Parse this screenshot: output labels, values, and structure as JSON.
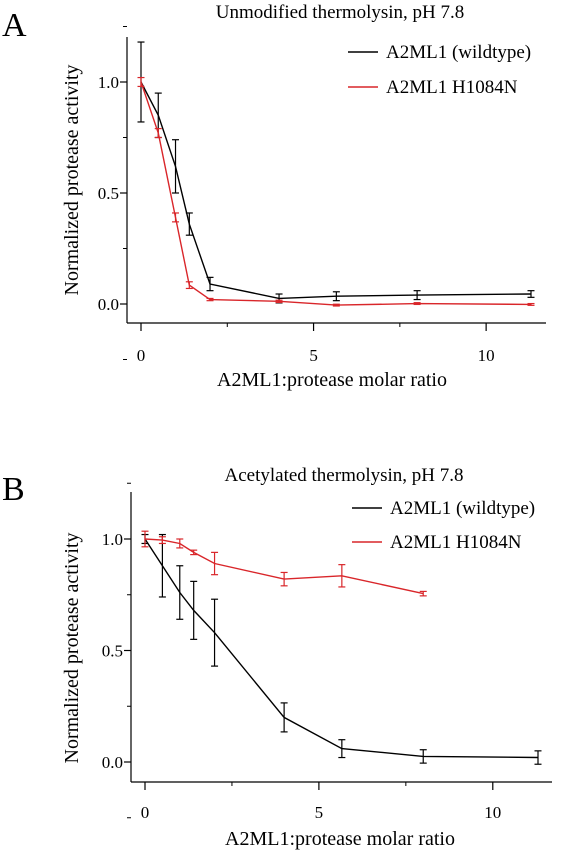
{
  "chart_data": [
    {
      "type": "line",
      "panel_label": "A",
      "title": "Unmodified thermolysin, pH 7.8",
      "xlabel": "A2ML1:protease molar ratio",
      "ylabel": "Normalized protease activity",
      "xlim": [
        -0.7,
        12.2
      ],
      "ylim": [
        -0.2,
        1.2
      ],
      "xticks": [
        0,
        5,
        10
      ],
      "yticks": [
        0.0,
        0.5,
        1.0
      ],
      "xtick_labels": [
        "0",
        "5",
        "10"
      ],
      "ytick_labels": [
        "0.0",
        "0.5",
        "1.0"
      ],
      "grid": false,
      "legend_position": "top-right",
      "series": [
        {
          "name": "A2ML1 (wildtype)",
          "color": "#000000",
          "x": [
            0,
            0.5,
            1.0,
            1.4,
            2.0,
            4.0,
            5.66,
            8.0,
            11.3
          ],
          "y": [
            1.0,
            0.85,
            0.62,
            0.36,
            0.09,
            0.025,
            0.035,
            0.04,
            0.045
          ],
          "error": [
            0.18,
            0.1,
            0.12,
            0.05,
            0.03,
            0.02,
            0.02,
            0.02,
            0.015
          ]
        },
        {
          "name": "A2ML1 H1084N",
          "color": "#d9262a",
          "x": [
            0,
            0.5,
            1.0,
            1.4,
            2.0,
            4.0,
            5.66,
            8.0,
            11.3
          ],
          "y": [
            1.0,
            0.77,
            0.39,
            0.085,
            0.02,
            0.012,
            -0.005,
            0.002,
            -0.002
          ],
          "error": [
            0.02,
            0.02,
            0.02,
            0.015,
            0.005,
            0.005,
            0.004,
            0.004,
            0.004
          ]
        }
      ]
    },
    {
      "type": "line",
      "panel_label": "B",
      "title": "Acetylated thermolysin, pH 7.8",
      "xlabel": "A2ML1:protease molar ratio",
      "ylabel": "Normalized protease activity",
      "xlim": [
        -0.7,
        12.2
      ],
      "ylim": [
        -0.2,
        1.2
      ],
      "xticks": [
        0,
        5,
        10
      ],
      "yticks": [
        0.0,
        0.5,
        1.0
      ],
      "xtick_labels": [
        "0",
        "5",
        "10"
      ],
      "ytick_labels": [
        "0.0",
        "0.5",
        "1.0"
      ],
      "grid": false,
      "legend_position": "top-right",
      "series": [
        {
          "name": "A2ML1 (wildtype)",
          "color": "#000000",
          "x": [
            0,
            0.5,
            1.0,
            1.4,
            2.0,
            4.0,
            5.66,
            8.0,
            11.3
          ],
          "y": [
            1.0,
            0.88,
            0.76,
            0.68,
            0.58,
            0.2,
            0.06,
            0.025,
            0.02
          ],
          "error": [
            0.02,
            0.14,
            0.12,
            0.13,
            0.15,
            0.065,
            0.04,
            0.03,
            0.03
          ]
        },
        {
          "name": "A2ML1 H1084N",
          "color": "#d9262a",
          "x": [
            0,
            0.5,
            1.0,
            1.4,
            2.0,
            4.0,
            5.66,
            8.0
          ],
          "y": [
            1.0,
            0.995,
            0.98,
            0.94,
            0.89,
            0.82,
            0.835,
            0.755
          ],
          "error": [
            0.035,
            0.015,
            0.02,
            0.01,
            0.05,
            0.03,
            0.05,
            0.01
          ]
        }
      ]
    }
  ]
}
